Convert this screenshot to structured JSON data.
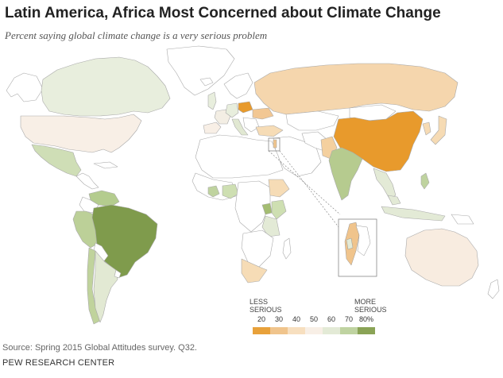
{
  "title": "Latin America, Africa Most Concerned about Climate Change",
  "subtitle": "Percent saying global climate change is a very serious problem",
  "legend": {
    "less_line1": "LESS",
    "less_line2": "SERIOUS",
    "more_line1": "MORE",
    "more_line2": "SERIOUS",
    "ticks": [
      "20",
      "30",
      "40",
      "50",
      "60",
      "70",
      "80%"
    ],
    "colors": [
      "#e8a13a",
      "#f0c48c",
      "#f7dfbf",
      "#f8efe6",
      "#e3ead6",
      "#bfd3a1",
      "#8aa356"
    ]
  },
  "colors": {
    "no_data": "#ffffff",
    "border": "#aaaaaa",
    "ocean": "#ffffff"
  },
  "source": "Source: Spring 2015 Global Attitudes survey. Q32.",
  "credit": "PEW RESEARCH CENTER"
}
